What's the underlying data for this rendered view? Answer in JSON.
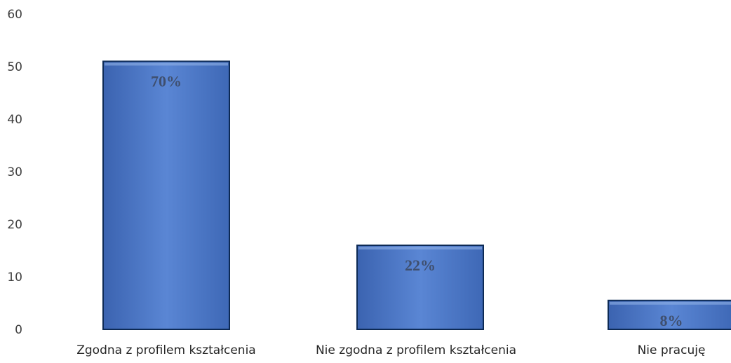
{
  "chart_data": {
    "type": "bar",
    "categories": [
      "Zgodna z profilem kształcenia",
      "Nie zgodna z profilem kształcenia",
      "Nie pracuję"
    ],
    "values": [
      51,
      16,
      5.5
    ],
    "data_labels": [
      "70%",
      "22%",
      "8%"
    ],
    "ylim": [
      0,
      60
    ],
    "yticks": [
      "0",
      "10",
      "20",
      "30",
      "40",
      "50",
      "60"
    ],
    "grid": false,
    "legend": "none",
    "bar_color": "#4a76c6",
    "bar_edge_color": "#0d2a55",
    "title": "",
    "xlabel": "",
    "ylabel": ""
  }
}
